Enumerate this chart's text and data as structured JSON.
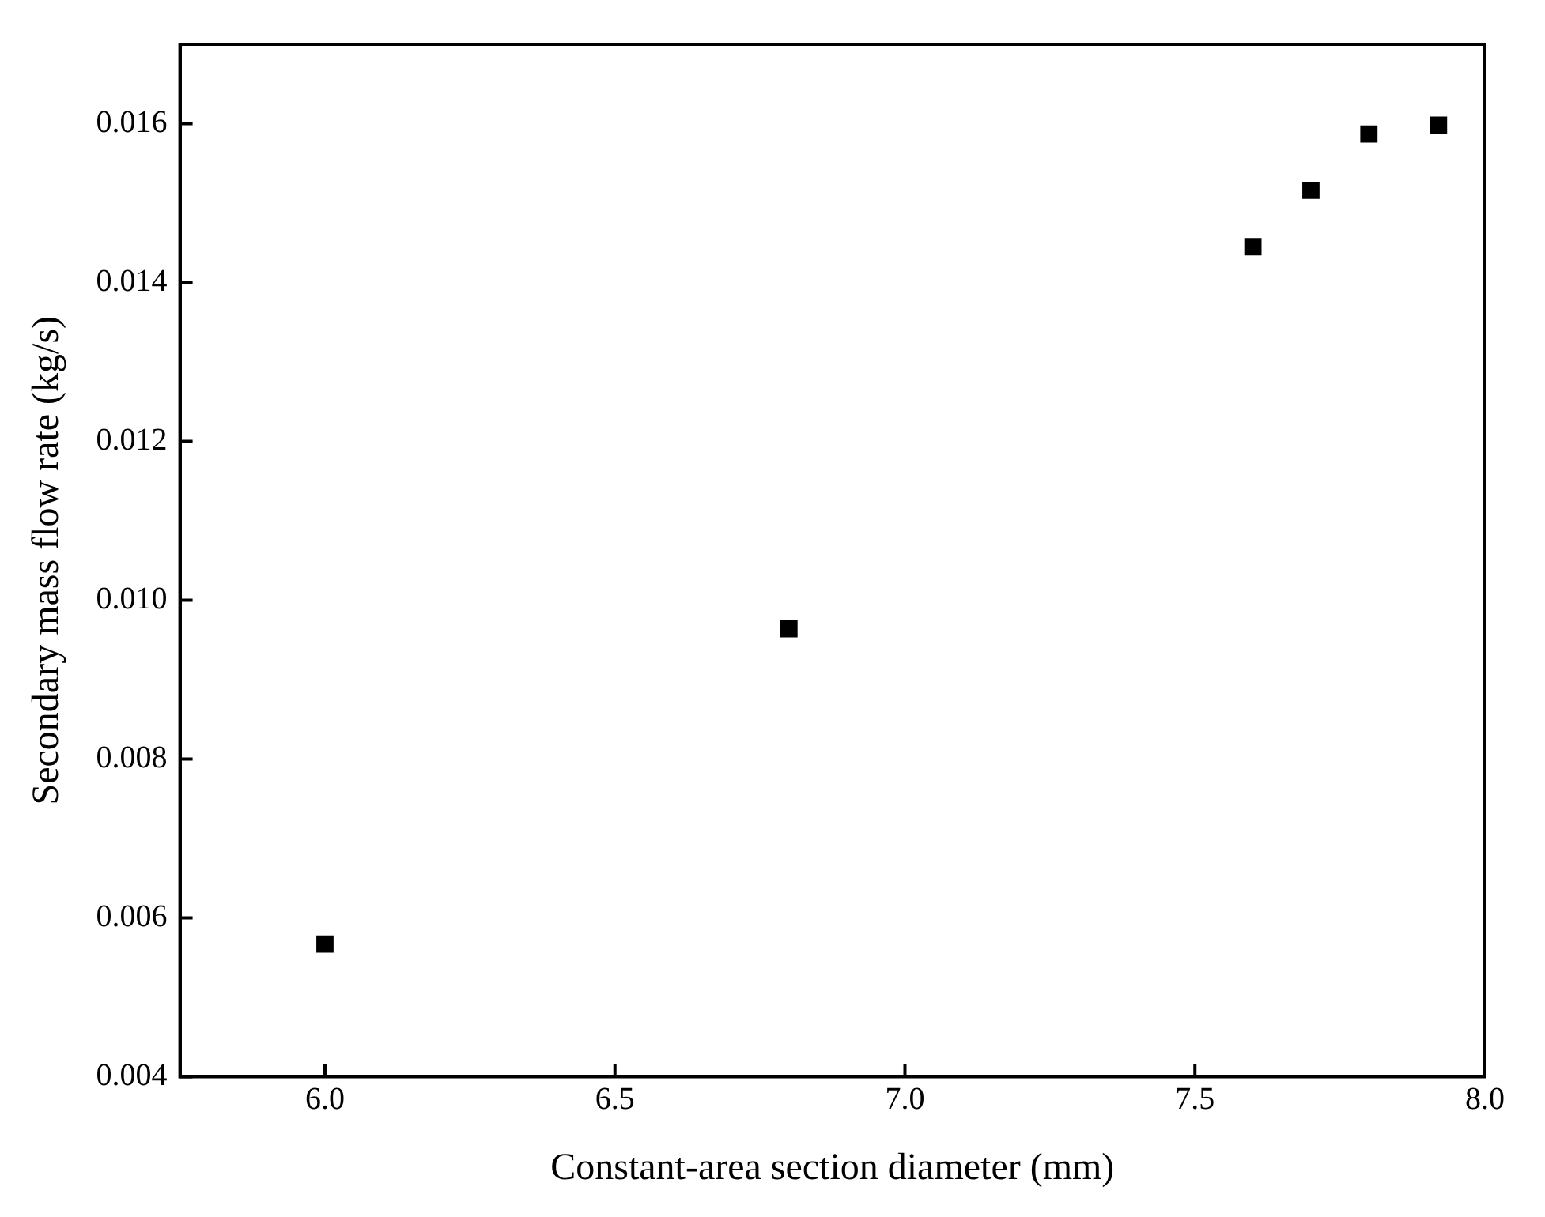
{
  "chart_data": {
    "type": "scatter",
    "xlabel": "Constant-area section diameter (mm)",
    "ylabel": "Secondary mass flow rate (kg/s)",
    "x": [
      6.0,
      6.8,
      7.6,
      7.7,
      7.8,
      7.92
    ],
    "series": [
      {
        "color": "#000000",
        "values": [
          0.00567,
          0.00964,
          0.01445,
          0.01516,
          0.01587,
          0.01598
        ]
      }
    ],
    "xlim": [
      5.75,
      8.0
    ],
    "ylim": [
      0.004,
      0.017
    ],
    "xticks": [
      {
        "value": 6.0,
        "label": "6.0"
      },
      {
        "value": 6.5,
        "label": "6.5"
      },
      {
        "value": 7.0,
        "label": "7.0"
      },
      {
        "value": 7.5,
        "label": "7.5"
      },
      {
        "value": 8.0,
        "label": "8.0"
      }
    ],
    "yticks": [
      {
        "value": 0.004,
        "label": "0.004"
      },
      {
        "value": 0.006,
        "label": "0.006"
      },
      {
        "value": 0.008,
        "label": "0.008"
      },
      {
        "value": 0.01,
        "label": "0.010"
      },
      {
        "value": 0.012,
        "label": "0.012"
      },
      {
        "value": 0.014,
        "label": "0.014"
      },
      {
        "value": 0.016,
        "label": "0.016"
      }
    ],
    "grid": false,
    "legend": false,
    "marker": "square"
  }
}
